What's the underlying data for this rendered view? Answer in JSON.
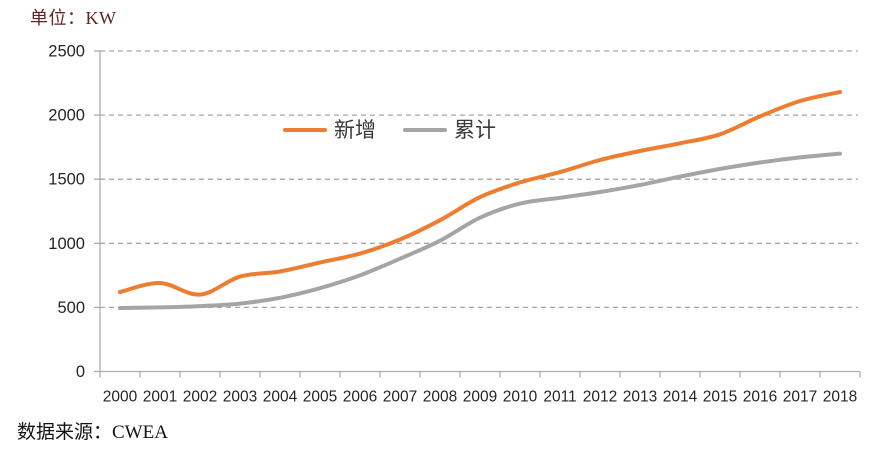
{
  "header": {
    "unit_label": "单位：KW"
  },
  "footer": {
    "source_label": "数据来源：CWEA"
  },
  "chart_data": {
    "type": "line",
    "title": "",
    "unit": "KW",
    "categories": [
      "2000",
      "2001",
      "2002",
      "2003",
      "2004",
      "2005",
      "2006",
      "2007",
      "2008",
      "2009",
      "2010",
      "2011",
      "2012",
      "2013",
      "2014",
      "2015",
      "2016",
      "2017",
      "2018"
    ],
    "series": [
      {
        "name": "新增",
        "color": "#ED7D31",
        "values": [
          620,
          690,
          600,
          740,
          780,
          850,
          920,
          1030,
          1180,
          1360,
          1475,
          1555,
          1650,
          1720,
          1780,
          1850,
          1990,
          2110,
          2180
        ]
      },
      {
        "name": "累计",
        "color": "#A5A5A5",
        "values": [
          495,
          500,
          510,
          530,
          575,
          650,
          750,
          880,
          1020,
          1200,
          1310,
          1355,
          1400,
          1455,
          1520,
          1580,
          1630,
          1670,
          1700
        ]
      }
    ],
    "ylim": [
      0,
      2500
    ],
    "yticks": [
      0,
      500,
      1000,
      1500,
      2000,
      2500
    ],
    "xlabel": "",
    "ylabel": "",
    "grid": "horizontal-dashed",
    "legend_position": "inside-top-center",
    "source": "CWEA"
  },
  "style": {
    "grid_color": "#A6A6A6",
    "axis_color": "#ACACAC",
    "tick_label_color": "#262626",
    "unit_label_color": "#632423",
    "legend_text_color": "#3A3A3A",
    "line_width": 4
  }
}
